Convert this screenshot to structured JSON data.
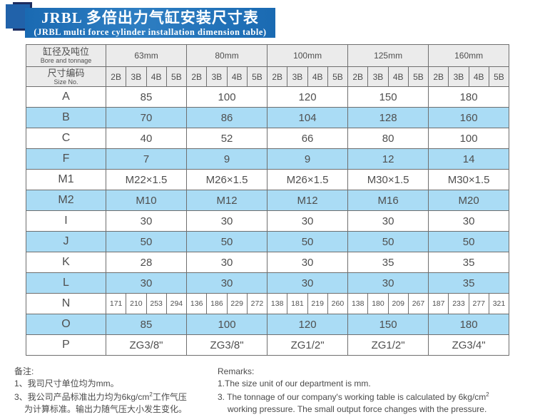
{
  "banner": {
    "title_cn": "JRBL 多倍出力气缸安装尺寸表",
    "title_en": "(JRBL multi force cylinder installation dimension table)"
  },
  "table": {
    "header": {
      "col1_cn": "缸径及吨位",
      "col1_en": "Bore and tonnage",
      "col2_cn": "尺寸编码",
      "col2_en": "Size No.",
      "groups": [
        "63mm",
        "80mm",
        "100mm",
        "125mm",
        "160mm"
      ],
      "sub_columns": [
        "2B",
        "3B",
        "4B",
        "5B"
      ]
    },
    "rows": [
      {
        "label": "A",
        "values": [
          "85",
          "100",
          "120",
          "150",
          "180"
        ]
      },
      {
        "label": "B",
        "values": [
          "70",
          "86",
          "104",
          "128",
          "160"
        ]
      },
      {
        "label": "C",
        "values": [
          "40",
          "52",
          "66",
          "80",
          "100"
        ]
      },
      {
        "label": "F",
        "values": [
          "7",
          "9",
          "9",
          "12",
          "14"
        ]
      },
      {
        "label": "M1",
        "values": [
          "M22×1.5",
          "M26×1.5",
          "M26×1.5",
          "M30×1.5",
          "M30×1.5"
        ]
      },
      {
        "label": "M2",
        "values": [
          "M10",
          "M12",
          "M12",
          "M16",
          "M20"
        ]
      },
      {
        "label": "I",
        "values": [
          "30",
          "30",
          "30",
          "30",
          "30"
        ]
      },
      {
        "label": "J",
        "values": [
          "50",
          "50",
          "50",
          "50",
          "50"
        ]
      },
      {
        "label": "K",
        "values": [
          "28",
          "30",
          "30",
          "35",
          "35"
        ]
      },
      {
        "label": "L",
        "values": [
          "30",
          "30",
          "30",
          "30",
          "35"
        ]
      },
      {
        "label": "N",
        "sub_values": [
          [
            "171",
            "210",
            "253",
            "294"
          ],
          [
            "136",
            "186",
            "229",
            "272"
          ],
          [
            "138",
            "181",
            "219",
            "260"
          ],
          [
            "138",
            "180",
            "209",
            "267"
          ],
          [
            "187",
            "233",
            "277",
            "321"
          ]
        ]
      },
      {
        "label": "O",
        "values": [
          "85",
          "100",
          "120",
          "150",
          "180"
        ]
      },
      {
        "label": "P",
        "values": [
          "ZG3/8\"",
          "ZG3/8\"",
          "ZG1/2\"",
          "ZG1/2\"",
          "ZG3/4\""
        ]
      }
    ]
  },
  "footer": {
    "cn": {
      "title": "备注:",
      "item1": "1、我司尺寸单位均为mm。",
      "item3_pre": "3、我公司产品标准出力均为6kg/cm",
      "item3_sup": "2",
      "item3_post": "工作气压",
      "item3_line2": "为计算标准。输出力随气压大小发生变化。"
    },
    "en": {
      "title": "Remarks:",
      "item1": "1.The size unit of our department is mm.",
      "item3_pre": "3. The tonnage of our company's working table is calculated by 6kg/cm",
      "item3_sup": "2",
      "item3_line2": "working pressure. The small output force changes with the pressure."
    }
  },
  "colors": {
    "banner_blue": "#1a6ab2",
    "banner_blue_light": "#2e7ec2",
    "navy": "#1d2d5f",
    "stripe_blue": "#aadcf5",
    "header_gray": "#ebebeb",
    "table_text": "#4f4f4f",
    "border_gray": "#6f6f6f"
  }
}
